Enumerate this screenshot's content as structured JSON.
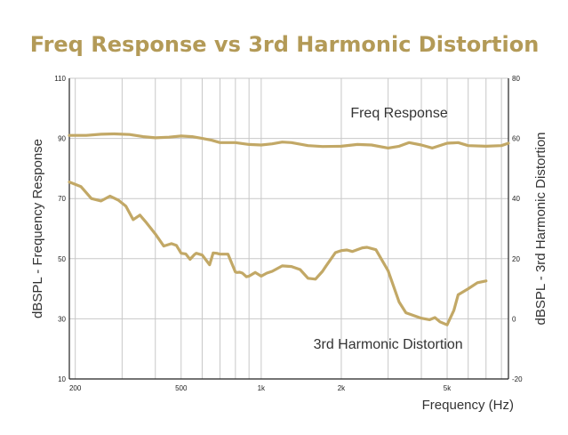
{
  "chart_data": {
    "type": "line",
    "title": "Freq Response vs 3rd Harmonic Distortion",
    "xlabel": "Frequency (Hz)",
    "ylabel": "dBSPL - Frequency Response",
    "ylabel_right": "dBSPL - 3rd Harmonic Distortion",
    "xscale": "log",
    "xlim": [
      190,
      8500
    ],
    "ylim": [
      10,
      110
    ],
    "ylim_right": [
      -20,
      80
    ],
    "x_ticks": [
      {
        "value": 200,
        "label": "200"
      },
      {
        "value": 500,
        "label": "500"
      },
      {
        "value": 1000,
        "label": "1k"
      },
      {
        "value": 2000,
        "label": "2k"
      },
      {
        "value": 5000,
        "label": "5k"
      }
    ],
    "y_ticks": [
      {
        "value": 10,
        "label": "10"
      },
      {
        "value": 30,
        "label": "30"
      },
      {
        "value": 50,
        "label": "50"
      },
      {
        "value": 70,
        "label": "70"
      },
      {
        "value": 90,
        "label": "90"
      },
      {
        "value": 110,
        "label": "110"
      }
    ],
    "y_ticks_right": [
      {
        "value": -20,
        "label": "-20"
      },
      {
        "value": 0,
        "label": "0"
      },
      {
        "value": 20,
        "label": "20"
      },
      {
        "value": 40,
        "label": "40"
      },
      {
        "value": 60,
        "label": "60"
      },
      {
        "value": 80,
        "label": "80"
      }
    ],
    "grid": true,
    "color": "#c2a866",
    "series": [
      {
        "name": "Freq Response",
        "axis": "left",
        "x": [
          190,
          220,
          250,
          280,
          320,
          360,
          400,
          450,
          500,
          550,
          600,
          650,
          700,
          800,
          900,
          1000,
          1100,
          1200,
          1300,
          1500,
          1700,
          2000,
          2300,
          2600,
          3000,
          3300,
          3600,
          4000,
          4400,
          5000,
          5500,
          6000,
          7000,
          8000,
          8500
        ],
        "values": [
          91.0,
          91.0,
          91.4,
          91.5,
          91.3,
          90.6,
          90.2,
          90.4,
          90.8,
          90.6,
          90.0,
          89.4,
          88.6,
          88.6,
          88.0,
          87.8,
          88.2,
          88.8,
          88.6,
          87.6,
          87.3,
          87.4,
          88.0,
          87.8,
          86.8,
          87.4,
          88.6,
          87.8,
          86.8,
          88.4,
          88.6,
          87.6,
          87.4,
          87.6,
          88.4
        ]
      },
      {
        "name": "3rd Harmonic Distortion",
        "axis": "right",
        "x": [
          190,
          210,
          230,
          250,
          270,
          290,
          310,
          330,
          350,
          370,
          400,
          430,
          460,
          480,
          500,
          520,
          540,
          560,
          570,
          600,
          640,
          660,
          680,
          700,
          750,
          800,
          810,
          830,
          850,
          880,
          900,
          950,
          1000,
          1050,
          1100,
          1200,
          1300,
          1400,
          1500,
          1600,
          1700,
          1750,
          1800,
          1900,
          2000,
          2100,
          2200,
          2400,
          2500,
          2700,
          3000,
          3300,
          3500,
          4000,
          4300,
          4500,
          4700,
          5000,
          5300,
          5500,
          6000,
          6500,
          7000
        ],
        "values": [
          45.5,
          44.0,
          40.0,
          39.2,
          40.8,
          39.5,
          37.5,
          33.0,
          34.5,
          32.0,
          28.2,
          24.2,
          25.0,
          24.4,
          21.8,
          21.6,
          19.8,
          21.3,
          21.8,
          21.2,
          18.0,
          21.9,
          21.8,
          21.5,
          21.5,
          15.6,
          15.4,
          15.5,
          15.2,
          14.0,
          14.2,
          15.4,
          14.2,
          15.2,
          15.8,
          17.6,
          17.4,
          16.4,
          13.5,
          13.2,
          15.8,
          17.5,
          19.0,
          22.0,
          22.7,
          22.9,
          22.4,
          23.6,
          23.8,
          23.0,
          16.0,
          5.6,
          2.0,
          0.2,
          -0.3,
          0.4,
          -1.0,
          -2.0,
          2.8,
          8.0,
          10.0,
          12.0,
          12.6
        ]
      }
    ],
    "annotations": [
      {
        "text": "Freq Response",
        "x": 3300,
        "y": 97
      },
      {
        "text": "3rd Harmonic Distortion",
        "x": 3000,
        "y": 20
      }
    ]
  }
}
